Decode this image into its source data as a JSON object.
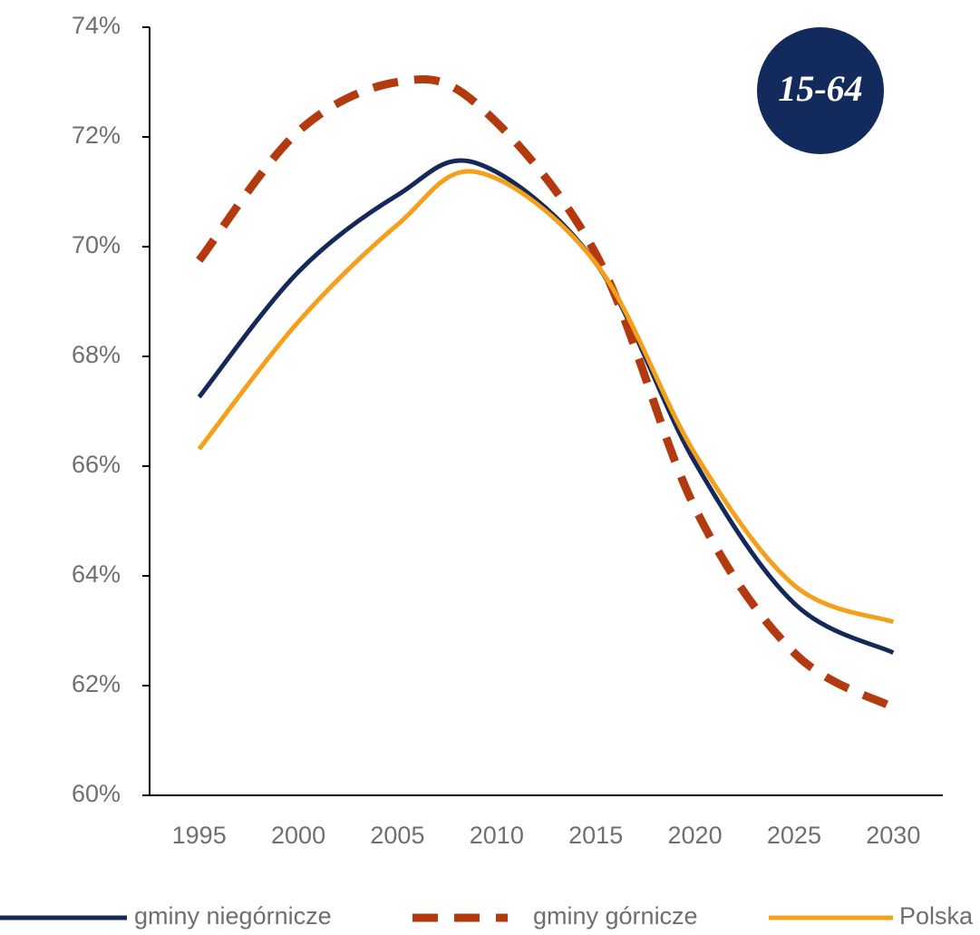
{
  "chart_data": {
    "type": "line",
    "annotation": "15-64",
    "x": [
      1995,
      2000,
      2005,
      2009,
      2015,
      2020,
      2025,
      2030
    ],
    "series": [
      {
        "name": "gminy niegórnicze",
        "color": "#14285a",
        "dashed": false,
        "values": [
          67.26,
          69.54,
          70.94,
          71.52,
          69.7,
          66.07,
          63.5,
          62.6
        ]
      },
      {
        "name": "gminy górnicze",
        "color": "#b33a0f",
        "dashed": true,
        "values": [
          69.75,
          72.1,
          73.0,
          72.6,
          69.87,
          65.24,
          62.6,
          61.6
        ]
      },
      {
        "name": "Polska",
        "color": "#f5a01a",
        "dashed": false,
        "values": [
          66.31,
          68.63,
          70.4,
          71.36,
          69.7,
          66.23,
          63.83,
          63.16
        ]
      }
    ],
    "xlim": [
      1992.5,
      2032.5
    ],
    "xticks": [
      1995,
      2000,
      2005,
      2010,
      2015,
      2020,
      2025,
      2030
    ],
    "ylim": [
      60,
      74
    ],
    "yticks": [
      {
        "value": 60,
        "label": "60%"
      },
      {
        "value": 62,
        "label": "62%"
      },
      {
        "value": 64,
        "label": "64%"
      },
      {
        "value": 66,
        "label": "66%"
      },
      {
        "value": 68,
        "label": "68%"
      },
      {
        "value": 70,
        "label": "70%"
      },
      {
        "value": 72,
        "label": "72%"
      },
      {
        "value": 74,
        "label": "74%"
      }
    ],
    "legend": "bottom"
  }
}
